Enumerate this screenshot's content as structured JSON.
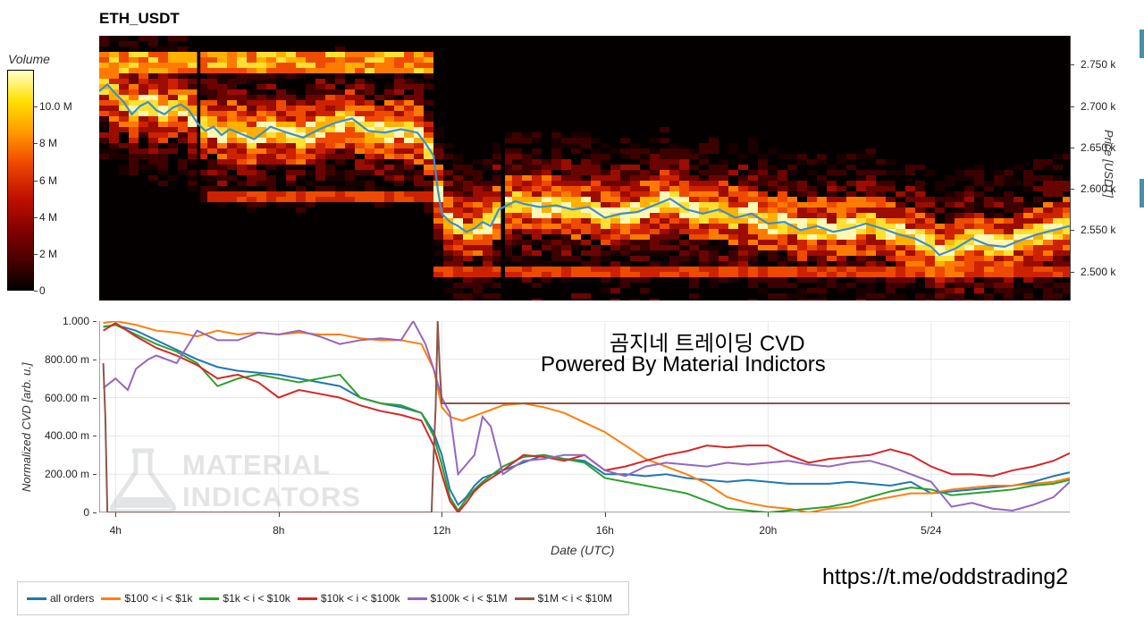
{
  "title": "ETH_USDT",
  "colorbar": {
    "label": "Volume",
    "ticks": [
      {
        "value": 0,
        "label": "0"
      },
      {
        "value": 2,
        "label": "2 M"
      },
      {
        "value": 4,
        "label": "4 M"
      },
      {
        "value": 6,
        "label": "6 M"
      },
      {
        "value": 8,
        "label": "8 M"
      },
      {
        "value": 10,
        "label": "10.0 M"
      }
    ],
    "max": 12
  },
  "price_axis": {
    "label": "Price [USDT]",
    "ticks": [
      {
        "value": 2750,
        "label": "2.750 k"
      },
      {
        "value": 2700,
        "label": "2.700 k"
      },
      {
        "value": 2650,
        "label": "2.650 k"
      },
      {
        "value": 2600,
        "label": "2.600 k"
      },
      {
        "value": 2550,
        "label": "2.550 k"
      },
      {
        "value": 2500,
        "label": "2.500 k"
      }
    ]
  },
  "annotation": {
    "line1": "곰지네 트레이딩 CVD",
    "line2": "Powered By Material Indictors"
  },
  "watermark": {
    "line1": "MATERIAL",
    "line2": "INDICATORS"
  },
  "url_text": "https://t.me/oddstrading2",
  "colors": {
    "all_orders": "#1f77b4",
    "s100_1k": "#ff7f0e",
    "s1k_10k": "#2ca02c",
    "s10k_100k": "#d62728",
    "s100k_1m": "#9467bd",
    "s1m_10m": "#8c564b",
    "price_line": "#3a8fd0"
  },
  "chart_data": [
    {
      "type": "heatmap",
      "title": "ETH_USDT",
      "ylabel": "Price [USDT]",
      "ylim": [
        2465,
        2785
      ],
      "xlim": [
        3.6,
        27.4
      ],
      "colorbar_label": "Volume",
      "colorbar_range_millions": [
        0,
        12
      ],
      "price_line": {
        "x": [
          3.6,
          3.8,
          4.0,
          4.2,
          4.4,
          4.6,
          4.8,
          5.0,
          5.2,
          5.4,
          5.6,
          5.8,
          6.0,
          6.2,
          6.4,
          6.6,
          6.8,
          7.0,
          7.4,
          7.8,
          8.2,
          8.6,
          9.0,
          9.4,
          9.8,
          10.2,
          10.6,
          11.0,
          11.4,
          11.6,
          11.8,
          11.9,
          12.0,
          12.2,
          12.4,
          12.6,
          12.8,
          13.0,
          13.2,
          13.4,
          13.6,
          13.8,
          14.0,
          14.4,
          14.8,
          15.2,
          15.6,
          16.0,
          16.4,
          16.8,
          17.2,
          17.6,
          18.0,
          18.4,
          18.8,
          19.2,
          19.6,
          20.0,
          20.4,
          20.8,
          21.2,
          21.6,
          22.0,
          22.4,
          22.8,
          23.2,
          23.6,
          24.0,
          24.2,
          24.6,
          25.0,
          25.4,
          25.8,
          26.2,
          26.6,
          27.0,
          27.4
        ],
        "y": [
          2718,
          2726,
          2715,
          2705,
          2690,
          2700,
          2705,
          2695,
          2690,
          2698,
          2702,
          2695,
          2680,
          2670,
          2675,
          2665,
          2672,
          2668,
          2660,
          2675,
          2668,
          2662,
          2672,
          2680,
          2685,
          2670,
          2668,
          2672,
          2668,
          2655,
          2640,
          2600,
          2570,
          2560,
          2555,
          2548,
          2552,
          2560,
          2555,
          2575,
          2580,
          2585,
          2582,
          2578,
          2580,
          2575,
          2578,
          2565,
          2570,
          2572,
          2580,
          2588,
          2575,
          2570,
          2575,
          2565,
          2570,
          2558,
          2560,
          2550,
          2555,
          2548,
          2552,
          2558,
          2552,
          2545,
          2540,
          2530,
          2520,
          2528,
          2540,
          2532,
          2530,
          2538,
          2545,
          2550,
          2555
        ]
      }
    },
    {
      "type": "line",
      "xlabel": "Date (UTC)",
      "ylabel": "Normalized CVD [arb. u.]",
      "ylim": [
        0,
        1.0
      ],
      "xlim": [
        3.6,
        27.4
      ],
      "x_ticks": [
        {
          "value": 4,
          "label": "4h"
        },
        {
          "value": 8,
          "label": "8h"
        },
        {
          "value": 12,
          "label": "12h"
        },
        {
          "value": 16,
          "label": "16h"
        },
        {
          "value": 20,
          "label": "20h"
        },
        {
          "value": 24,
          "label": "5/24"
        }
      ],
      "y_ticks": [
        {
          "value": 0,
          "label": "0"
        },
        {
          "value": 0.2,
          "label": "200.00 m"
        },
        {
          "value": 0.4,
          "label": "400.00 m"
        },
        {
          "value": 0.6,
          "label": "600.00 m"
        },
        {
          "value": 0.8,
          "label": "800.00 m"
        },
        {
          "value": 1.0,
          "label": "1.000"
        }
      ],
      "series": [
        {
          "name": "all orders",
          "x": [
            3.7,
            4.0,
            4.5,
            5.0,
            5.5,
            6.0,
            6.5,
            7.0,
            7.5,
            8.0,
            8.5,
            9.0,
            9.5,
            10.0,
            10.5,
            11.0,
            11.5,
            11.8,
            12.0,
            12.2,
            12.4,
            12.6,
            12.8,
            13.0,
            13.5,
            14.0,
            14.5,
            15.0,
            15.5,
            16.0,
            16.5,
            17.0,
            17.5,
            18.0,
            18.5,
            19.0,
            19.5,
            20.0,
            20.5,
            21.0,
            21.5,
            22.0,
            22.5,
            23.0,
            23.5,
            24.0,
            24.5,
            25.0,
            25.5,
            26.0,
            26.5,
            27.0,
            27.4
          ],
          "y": [
            0.97,
            0.98,
            0.95,
            0.9,
            0.85,
            0.8,
            0.76,
            0.74,
            0.73,
            0.72,
            0.7,
            0.68,
            0.66,
            0.6,
            0.57,
            0.55,
            0.52,
            0.42,
            0.3,
            0.12,
            0.04,
            0.08,
            0.14,
            0.18,
            0.22,
            0.26,
            0.3,
            0.28,
            0.27,
            0.2,
            0.2,
            0.19,
            0.2,
            0.18,
            0.17,
            0.16,
            0.17,
            0.16,
            0.15,
            0.15,
            0.15,
            0.16,
            0.15,
            0.14,
            0.16,
            0.1,
            0.11,
            0.12,
            0.13,
            0.14,
            0.16,
            0.19,
            0.21
          ]
        },
        {
          "name": "$100 < i < $1k",
          "x": [
            3.7,
            4.0,
            4.5,
            5.0,
            5.5,
            6.0,
            6.5,
            7.0,
            7.5,
            8.0,
            8.5,
            9.0,
            9.5,
            10.0,
            10.5,
            11.0,
            11.5,
            11.8,
            12.0,
            12.2,
            12.5,
            13.0,
            13.5,
            14.0,
            14.5,
            15.0,
            15.5,
            16.0,
            16.5,
            17.0,
            17.5,
            18.0,
            18.5,
            19.0,
            19.5,
            20.0,
            20.5,
            21.0,
            21.5,
            22.0,
            22.5,
            23.0,
            23.5,
            24.0,
            24.5,
            25.0,
            25.5,
            26.0,
            26.5,
            27.0,
            27.4
          ],
          "y": [
            0.99,
            1.0,
            0.98,
            0.95,
            0.94,
            0.92,
            0.95,
            0.93,
            0.94,
            0.93,
            0.94,
            0.93,
            0.93,
            0.91,
            0.9,
            0.9,
            0.88,
            0.75,
            0.55,
            0.5,
            0.48,
            0.52,
            0.56,
            0.57,
            0.55,
            0.52,
            0.47,
            0.42,
            0.35,
            0.28,
            0.24,
            0.2,
            0.15,
            0.08,
            0.05,
            0.03,
            0.02,
            0.0,
            0.02,
            0.03,
            0.06,
            0.08,
            0.1,
            0.1,
            0.12,
            0.13,
            0.14,
            0.14,
            0.15,
            0.16,
            0.18
          ]
        },
        {
          "name": "$1k < i < $10k",
          "x": [
            3.7,
            4.0,
            4.5,
            5.0,
            5.5,
            6.0,
            6.5,
            7.0,
            7.5,
            8.0,
            8.5,
            9.0,
            9.5,
            10.0,
            10.5,
            11.0,
            11.5,
            11.8,
            12.0,
            12.2,
            12.4,
            12.6,
            12.8,
            13.0,
            13.5,
            14.0,
            14.5,
            15.0,
            15.5,
            16.0,
            16.5,
            17.0,
            17.5,
            18.0,
            18.5,
            19.0,
            19.5,
            20.0,
            20.5,
            21.0,
            21.5,
            22.0,
            22.5,
            23.0,
            23.5,
            24.0,
            24.5,
            25.0,
            25.5,
            26.0,
            26.5,
            27.0,
            27.4
          ],
          "y": [
            0.97,
            0.98,
            0.93,
            0.88,
            0.84,
            0.78,
            0.66,
            0.7,
            0.72,
            0.7,
            0.68,
            0.7,
            0.72,
            0.6,
            0.57,
            0.56,
            0.52,
            0.4,
            0.25,
            0.08,
            0.01,
            0.07,
            0.12,
            0.16,
            0.24,
            0.29,
            0.3,
            0.28,
            0.26,
            0.18,
            0.16,
            0.14,
            0.12,
            0.1,
            0.06,
            0.02,
            0.01,
            0.0,
            0.01,
            0.02,
            0.03,
            0.05,
            0.08,
            0.11,
            0.13,
            0.12,
            0.09,
            0.1,
            0.11,
            0.12,
            0.14,
            0.15,
            0.17
          ]
        },
        {
          "name": "$10k < i < $100k",
          "x": [
            3.7,
            4.0,
            4.5,
            5.0,
            5.5,
            6.0,
            6.5,
            7.0,
            7.5,
            8.0,
            8.5,
            9.0,
            9.5,
            10.0,
            10.5,
            11.0,
            11.5,
            11.8,
            12.0,
            12.2,
            12.4,
            12.6,
            12.8,
            13.0,
            13.5,
            14.0,
            14.5,
            15.0,
            15.5,
            16.0,
            16.5,
            17.0,
            17.5,
            18.0,
            18.5,
            19.0,
            19.5,
            20.0,
            20.5,
            21.0,
            21.5,
            22.0,
            22.5,
            23.0,
            23.5,
            24.0,
            24.5,
            25.0,
            25.5,
            26.0,
            26.5,
            27.0,
            27.4
          ],
          "y": [
            0.95,
            0.99,
            0.92,
            0.86,
            0.82,
            0.77,
            0.7,
            0.72,
            0.68,
            0.6,
            0.64,
            0.62,
            0.6,
            0.56,
            0.53,
            0.51,
            0.48,
            0.35,
            0.2,
            0.06,
            0.0,
            0.05,
            0.11,
            0.15,
            0.22,
            0.3,
            0.29,
            0.27,
            0.3,
            0.22,
            0.24,
            0.27,
            0.3,
            0.32,
            0.35,
            0.34,
            0.35,
            0.35,
            0.3,
            0.26,
            0.28,
            0.29,
            0.3,
            0.33,
            0.3,
            0.24,
            0.2,
            0.2,
            0.19,
            0.22,
            0.24,
            0.27,
            0.31
          ]
        },
        {
          "name": "$100k < i < $1M",
          "x": [
            3.7,
            4.0,
            4.3,
            4.5,
            4.8,
            5.0,
            5.5,
            6.0,
            6.5,
            7.0,
            7.5,
            8.0,
            8.5,
            9.0,
            9.5,
            10.0,
            10.5,
            11.0,
            11.3,
            11.6,
            11.8,
            12.0,
            12.2,
            12.4,
            12.6,
            12.8,
            13.0,
            13.2,
            13.5,
            14.0,
            14.5,
            15.0,
            15.5,
            16.0,
            16.5,
            17.0,
            17.5,
            18.0,
            18.5,
            19.0,
            19.5,
            20.0,
            20.5,
            21.0,
            21.5,
            22.0,
            22.5,
            23.0,
            23.5,
            24.0,
            24.5,
            25.0,
            25.5,
            26.0,
            26.5,
            27.0,
            27.4
          ],
          "y": [
            0.65,
            0.7,
            0.64,
            0.75,
            0.8,
            0.82,
            0.78,
            0.95,
            0.9,
            0.9,
            0.94,
            0.93,
            0.95,
            0.92,
            0.88,
            0.9,
            0.91,
            0.9,
            1.0,
            0.88,
            0.75,
            0.6,
            0.52,
            0.2,
            0.25,
            0.3,
            0.5,
            0.45,
            0.2,
            0.27,
            0.28,
            0.3,
            0.3,
            0.22,
            0.19,
            0.24,
            0.26,
            0.25,
            0.24,
            0.26,
            0.25,
            0.26,
            0.27,
            0.25,
            0.24,
            0.26,
            0.27,
            0.24,
            0.2,
            0.16,
            0.03,
            0.05,
            0.02,
            0.01,
            0.04,
            0.08,
            0.16
          ]
        },
        {
          "name": "$1M < i < $10M",
          "x": [
            3.7,
            3.75,
            3.8,
            3.85,
            11.75,
            11.8,
            11.85,
            11.9,
            11.95,
            12.0,
            27.4
          ],
          "y": [
            0.78,
            0.5,
            0.0,
            0.0,
            0.0,
            0.3,
            0.55,
            1.0,
            0.75,
            0.57,
            0.57
          ]
        }
      ]
    }
  ]
}
